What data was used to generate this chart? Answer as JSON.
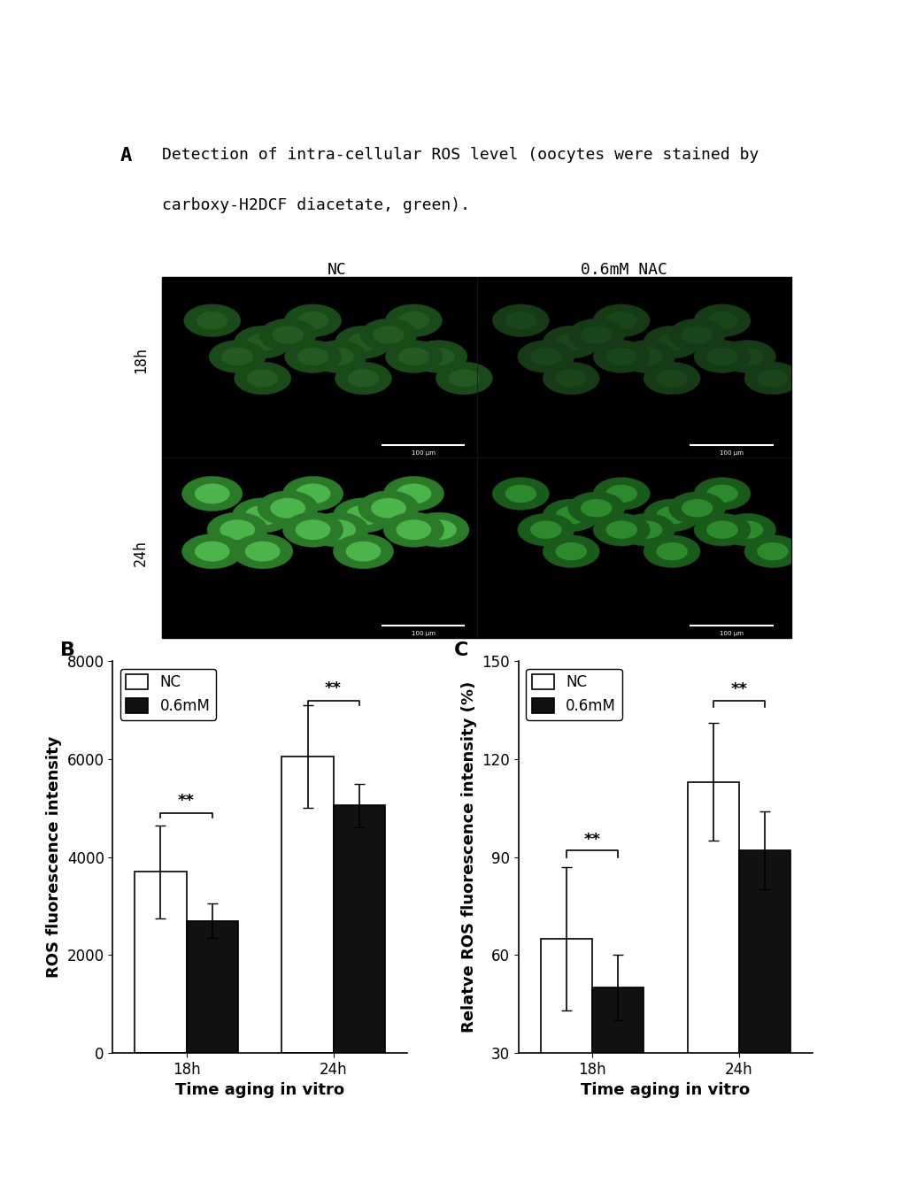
{
  "panel_A_title_line1": "Detection of intra-cellular ROS level (oocytes were stained by",
  "panel_A_title_line2": "carboxy-H2DCF diacetate, green).",
  "panel_A_label": "A",
  "panel_B_label": "B",
  "panel_C_label": "C",
  "col_labels": [
    "NC",
    "0.6mM NAC"
  ],
  "row_labels": [
    "18h",
    "24h"
  ],
  "B_ylabel": "ROS fluorescence intensity",
  "B_xlabel": "Time aging in vitro",
  "C_ylabel": "Relatve ROS fluorescence intensity (%)",
  "C_xlabel": "Time aging in vitro",
  "B_xticks": [
    "18h",
    "24h"
  ],
  "C_xticks": [
    "18h",
    "24h"
  ],
  "B_ylim": [
    0,
    8000
  ],
  "B_yticks": [
    0,
    2000,
    4000,
    6000,
    8000
  ],
  "C_ylim": [
    30,
    150
  ],
  "C_yticks": [
    30,
    60,
    90,
    120,
    150
  ],
  "B_NC_means": [
    3700,
    6050
  ],
  "B_NAC_means": [
    2700,
    5050
  ],
  "B_NC_errors": [
    950,
    1050
  ],
  "B_NAC_errors": [
    350,
    450
  ],
  "C_NC_means": [
    65,
    113
  ],
  "C_NAC_means": [
    50,
    92
  ],
  "C_NC_errors": [
    22,
    18
  ],
  "C_NAC_errors": [
    10,
    12
  ],
  "bar_width": 0.35,
  "NC_color": "#ffffff",
  "NAC_color": "#111111",
  "bar_edge_color": "#000000",
  "sig_text": "**",
  "background_color": "#ffffff",
  "title_fontsize": 13,
  "label_fontsize": 16,
  "tick_fontsize": 12,
  "axis_label_fontsize": 13,
  "legend_fontsize": 12
}
